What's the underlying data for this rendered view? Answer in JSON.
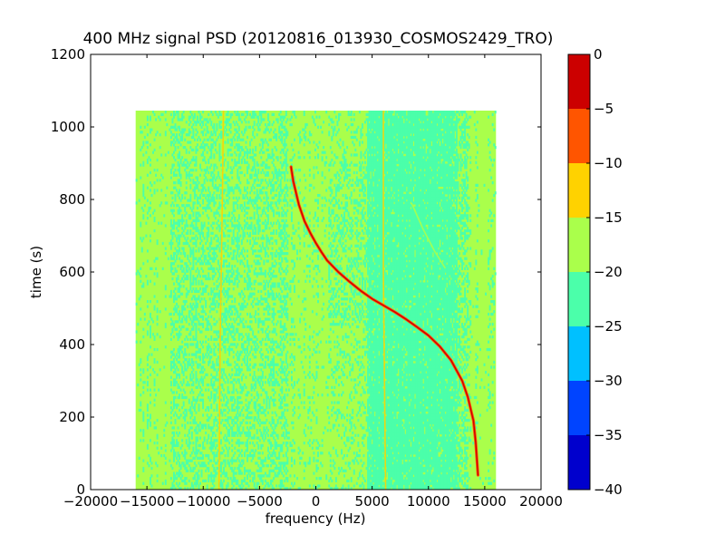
{
  "chart_data": {
    "type": "heatmap",
    "title": "400 MHz signal PSD (20120816_013930_COSMOS2429_TRO)",
    "xlabel": "frequency (Hz)",
    "ylabel": "time (s)",
    "xlim": [
      -20000,
      20000
    ],
    "ylim": [
      0,
      1200
    ],
    "xticks": [
      -20000,
      -15000,
      -10000,
      -5000,
      0,
      5000,
      10000,
      15000,
      20000
    ],
    "xtick_labels": [
      "−20000",
      "−15000",
      "−10000",
      "−5000",
      "0",
      "5000",
      "10000",
      "15000",
      "20000"
    ],
    "yticks": [
      0,
      200,
      400,
      600,
      800,
      1000,
      1200
    ],
    "ytick_labels": [
      "0",
      "200",
      "400",
      "600",
      "800",
      "1000",
      "1200"
    ],
    "data_extent": {
      "freq": [
        -16000,
        16000
      ],
      "time": [
        0,
        1045
      ]
    },
    "background_level": [
      -20,
      -15
    ],
    "noisy_band_level": [
      -25,
      -20
    ],
    "signal_trace": {
      "level": [
        -5,
        0
      ],
      "points": [
        [
          -2200,
          890
        ],
        [
          -2000,
          850
        ],
        [
          -1500,
          785
        ],
        [
          -1000,
          740
        ],
        [
          -500,
          708
        ],
        [
          0,
          680
        ],
        [
          500,
          655
        ],
        [
          1000,
          632
        ],
        [
          2000,
          600
        ],
        [
          3000,
          573
        ],
        [
          4000,
          548
        ],
        [
          5000,
          526
        ],
        [
          6000,
          508
        ],
        [
          7000,
          490
        ],
        [
          8000,
          470
        ],
        [
          9000,
          448
        ],
        [
          10000,
          425
        ],
        [
          11000,
          395
        ],
        [
          12000,
          357
        ],
        [
          13000,
          300
        ],
        [
          13500,
          255
        ],
        [
          14000,
          190
        ],
        [
          14200,
          130
        ],
        [
          14400,
          40
        ]
      ]
    },
    "faint_traces": [
      {
        "level": [
          -15,
          -10
        ],
        "points": [
          [
            -8200,
            1045
          ],
          [
            -8300,
            800
          ],
          [
            -8500,
            400
          ],
          [
            -8600,
            0
          ]
        ]
      },
      {
        "level": [
          -15,
          -10
        ],
        "points": [
          [
            6000,
            1045
          ],
          [
            6000,
            600
          ],
          [
            6100,
            300
          ],
          [
            6200,
            0
          ]
        ]
      },
      {
        "level": [
          -20,
          -15
        ],
        "points": [
          [
            8500,
            790
          ],
          [
            9500,
            720
          ],
          [
            10500,
            660
          ],
          [
            11500,
            610
          ]
        ]
      }
    ],
    "colorbar": {
      "min": -40,
      "max": 0,
      "ticks": [
        0,
        -5,
        -10,
        -15,
        -20,
        -25,
        -30,
        -35,
        -40
      ],
      "tick_labels": [
        "0",
        "−5",
        "−10",
        "−15",
        "−20",
        "−25",
        "−30",
        "−35",
        "−40"
      ],
      "bins": [
        {
          "from": -40,
          "to": -35,
          "color": "#0000cd"
        },
        {
          "from": -35,
          "to": -30,
          "color": "#0044ff"
        },
        {
          "from": -30,
          "to": -25,
          "color": "#00c0ff"
        },
        {
          "from": -25,
          "to": -20,
          "color": "#4bffaa"
        },
        {
          "from": -20,
          "to": -15,
          "color": "#aaff4b"
        },
        {
          "from": -15,
          "to": -10,
          "color": "#ffd200"
        },
        {
          "from": -10,
          "to": -5,
          "color": "#ff5500"
        },
        {
          "from": -5,
          "to": 0,
          "color": "#cc0000"
        }
      ]
    }
  }
}
